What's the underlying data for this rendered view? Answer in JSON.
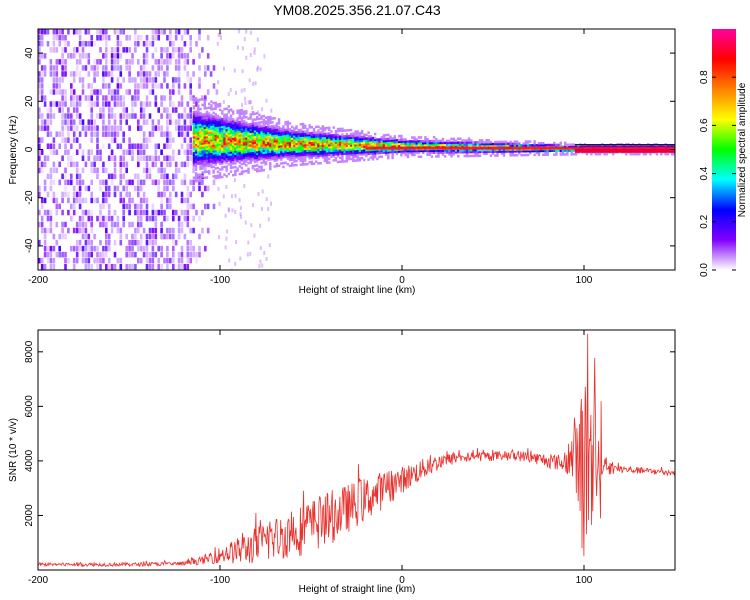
{
  "title": "YM08.2025.356.21.07.C43",
  "chart_data": [
    {
      "type": "heatmap",
      "xlabel": "Height of straight line (km)",
      "ylabel": "Frequency (Hz)",
      "xlim": [
        -200,
        150
      ],
      "ylim": [
        -50,
        50
      ],
      "xticks": [
        -200,
        -100,
        0,
        100
      ],
      "xtick_labels": [
        "-200",
        "-100",
        "0",
        "100"
      ],
      "yticks": [
        -40,
        -20,
        0,
        20,
        40
      ],
      "ytick_labels": [
        "-40",
        "-20",
        "0",
        "20",
        "40"
      ],
      "colorbar": {
        "label": "Normalized spectral amplitude",
        "range": [
          0,
          1
        ],
        "ticks": [
          0.0,
          0.2,
          0.4,
          0.6,
          0.8
        ],
        "tick_labels": [
          "0.0",
          "0.2",
          "0.4",
          "0.6",
          "0.8"
        ],
        "colors": [
          "#ffffff",
          "#8000ff",
          "#0000ff",
          "#00ffff",
          "#00ff00",
          "#ffff00",
          "#ff8000",
          "#ff0000",
          "#ff00a0"
        ]
      },
      "regions": [
        {
          "name": "noise",
          "x": [
            -200,
            -102
          ],
          "y": [
            -50,
            50
          ],
          "level": 0.15
        },
        {
          "name": "band",
          "x": [
            -115,
            150
          ],
          "center_freq": [
            [
              -115,
              4
            ],
            [
              -60,
              2
            ],
            [
              0,
              1
            ],
            [
              100,
              0
            ],
            [
              150,
              0
            ]
          ],
          "half_width": [
            [
              -115,
              8
            ],
            [
              -60,
              4
            ],
            [
              0,
              2
            ],
            [
              100,
              1
            ],
            [
              150,
              1
            ]
          ],
          "peak_level": 0.85
        }
      ]
    },
    {
      "type": "line",
      "xlabel": "Height of straight line (km)",
      "ylabel": "SNR (10 * v/v)",
      "xlim": [
        -200,
        150
      ],
      "ylim": [
        0,
        8800
      ],
      "xticks": [
        -200,
        -100,
        0,
        100
      ],
      "xtick_labels": [
        "-200",
        "-100",
        "0",
        "100"
      ],
      "yticks": [
        2000,
        4000,
        6000,
        8000
      ],
      "ytick_labels": [
        "2000",
        "4000",
        "6000",
        "8000"
      ],
      "series": [
        {
          "name": "SNR",
          "color": "#e8302c",
          "x": [
            -200,
            -150,
            -120,
            -110,
            -100,
            -90,
            -80,
            -70,
            -60,
            -50,
            -40,
            -30,
            -20,
            -10,
            0,
            10,
            20,
            30,
            40,
            50,
            60,
            70,
            80,
            90,
            95,
            100,
            103,
            105,
            107,
            110,
            120,
            130,
            140,
            150
          ],
          "y": [
            200,
            200,
            230,
            350,
            550,
            700,
            900,
            1150,
            1350,
            1600,
            1900,
            2250,
            2600,
            2950,
            3300,
            3650,
            3950,
            4100,
            4150,
            4180,
            4200,
            4150,
            4000,
            3900,
            4200,
            3500,
            3800,
            4000,
            3900,
            3750,
            3700,
            3650,
            3600,
            3550
          ],
          "noise": [
            60,
            70,
            80,
            150,
            300,
            500,
            700,
            800,
            900,
            1000,
            1000,
            900,
            800,
            700,
            500,
            400,
            300,
            200,
            180,
            180,
            180,
            200,
            250,
            350,
            1200,
            3500,
            2500,
            2000,
            1500,
            300,
            150,
            120,
            120,
            120
          ]
        }
      ]
    }
  ]
}
